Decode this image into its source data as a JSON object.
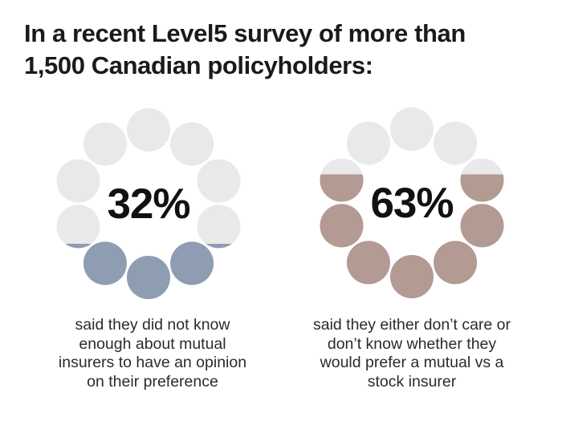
{
  "title": {
    "line1": "In a recent Level5 survey of more than",
    "line2": "1,500 Canadian policyholders:"
  },
  "chart_data": [
    {
      "type": "dot-ring",
      "percent_label": "32%",
      "value_percent": 32,
      "dots_total": 10,
      "dot_unit_percent": 10,
      "dot_fills_clockwise_from_top": [
        0,
        0,
        0,
        0.1,
        1,
        1,
        1,
        0.1,
        0,
        0
      ],
      "fill_color": "#8e9db2",
      "empty_color": "#e9e9e9",
      "caption_lines": [
        "said they did not know",
        "enough about mutual",
        "insurers to have an opinion",
        "on their preference"
      ]
    },
    {
      "type": "dot-ring",
      "percent_label": "63%",
      "value_percent": 63,
      "dots_total": 10,
      "dot_unit_percent": 10,
      "dot_fills_clockwise_from_top": [
        0,
        0,
        0.63,
        1,
        1,
        1,
        1,
        1,
        0.63,
        0
      ],
      "fill_color": "#b39a92",
      "empty_color": "#e9e9e9",
      "caption_lines": [
        "said they either don’t care or",
        "don’t know whether they",
        "would prefer a mutual vs a",
        "stock insurer"
      ]
    }
  ],
  "colors": {
    "background": "#ffffff",
    "title_text": "#1a1a1a",
    "percent_text": "#111111",
    "caption_text": "#2b2b2b"
  }
}
